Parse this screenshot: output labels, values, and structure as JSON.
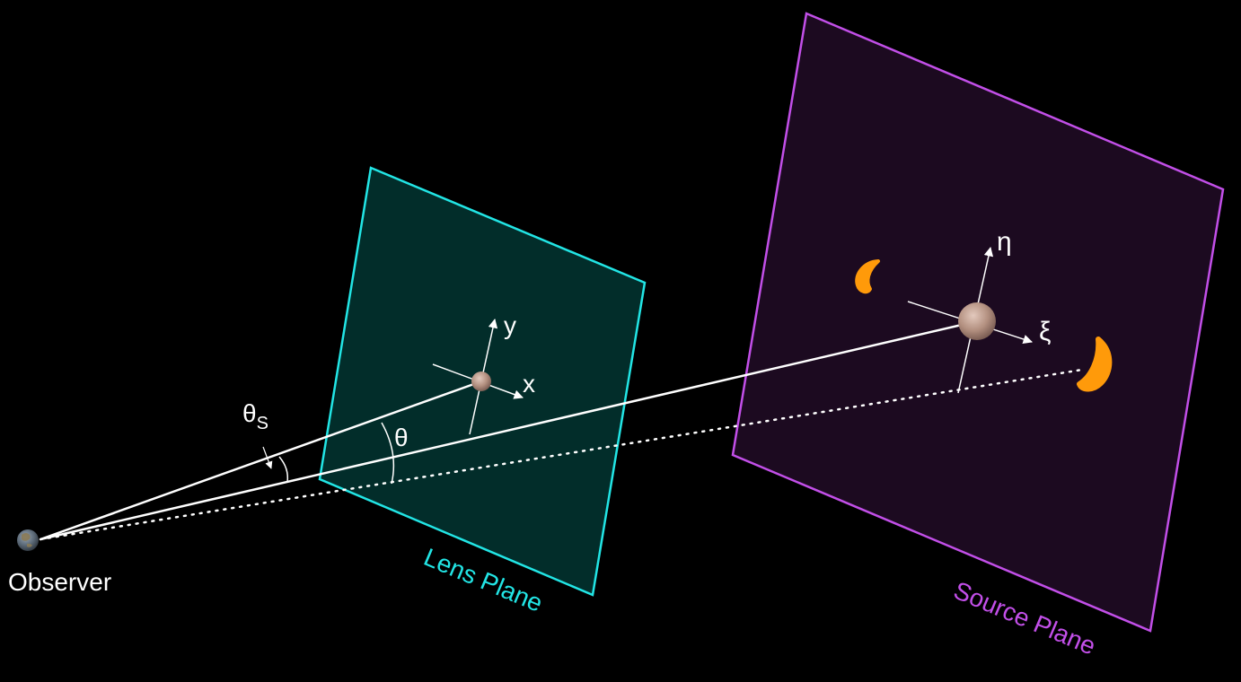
{
  "diagram": {
    "observer_label": "Observer",
    "lens_plane_label": "Lens Plane",
    "source_plane_label": "Source Plane",
    "lens_axes": {
      "x": "x",
      "y": "y"
    },
    "source_axes": {
      "xi": "ξ",
      "eta": "η"
    },
    "angle_theta": "θ",
    "angle_theta_s": {
      "symbol": "θ",
      "subscript": "S"
    }
  },
  "colors": {
    "background": "#000000",
    "lens_plane_stroke": "#22e5e5",
    "lens_plane_fill": "#022d2a",
    "source_plane_stroke": "#c24fe8",
    "source_plane_fill": "#1c0a20",
    "rays": "#ffffff",
    "lensed_images": "#ff9a0a",
    "mass": "#b89488"
  }
}
